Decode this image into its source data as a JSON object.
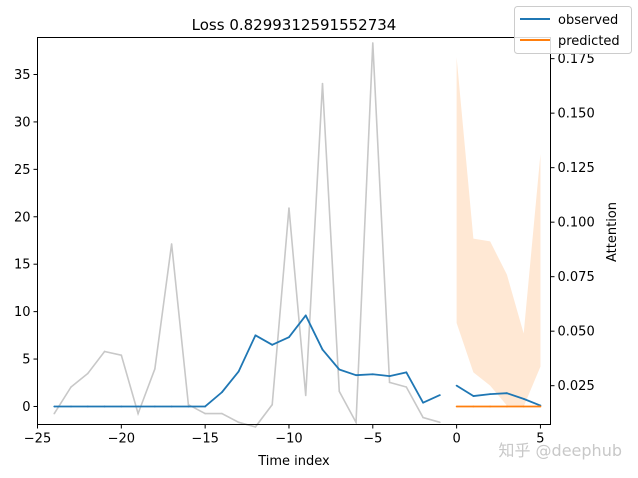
{
  "chart_data": {
    "type": "line",
    "title": "Loss 0.8299312591552734",
    "xlabel": "Time index",
    "ylabel": "",
    "y2label": "Attention",
    "xlim": [
      -25,
      5.6
    ],
    "ylim": [
      -1.9,
      38.9
    ],
    "y2lim": [
      0.0072,
      0.1847
    ],
    "xticks": [
      -25,
      -20,
      -15,
      -10,
      -5,
      0,
      5
    ],
    "xtick_labels": [
      "−25",
      "−20",
      "−15",
      "−10",
      "−5",
      "0",
      "5"
    ],
    "yticks": [
      0,
      5,
      10,
      15,
      20,
      25,
      30,
      35
    ],
    "ytick_labels": [
      "0",
      "5",
      "10",
      "15",
      "20",
      "25",
      "30",
      "35"
    ],
    "y2ticks": [
      0.025,
      0.05,
      0.075,
      0.1,
      0.125,
      0.15,
      0.175
    ],
    "y2tick_labels": [
      "0.025",
      "0.050",
      "0.075",
      "0.100",
      "0.125",
      "0.150",
      "0.175"
    ],
    "legend": {
      "position": "top-right",
      "entries": [
        "observed",
        "predicted"
      ]
    },
    "colors": {
      "observed": "#1f77b4",
      "predicted": "#ff7f0e",
      "attention": "#c8c8c8",
      "band": "#ffe5cf"
    },
    "attention": {
      "x": [
        -24,
        -23,
        -22,
        -21,
        -20,
        -19,
        -18,
        -17,
        -16,
        -15,
        -14,
        -13,
        -12,
        -11,
        -10,
        -9,
        -8,
        -7,
        -6,
        -5,
        -4,
        -3,
        -2,
        -1
      ],
      "y": [
        0.0122,
        0.0244,
        0.0306,
        0.0407,
        0.039,
        0.0122,
        0.0327,
        0.09,
        0.0163,
        0.0122,
        0.0122,
        0.0082,
        0.0061,
        0.0163,
        0.1065,
        0.0205,
        0.1636,
        0.0224,
        0.0082,
        0.1822,
        0.0265,
        0.0244,
        0.0104,
        0.0082
      ]
    },
    "series": [
      {
        "name": "observed",
        "segments": [
          {
            "x": [
              -24,
              -23,
              -22,
              -21,
              -20,
              -19,
              -18,
              -17,
              -16,
              -15,
              -14,
              -13,
              -12,
              -11,
              -10,
              -9,
              -8,
              -7,
              -6,
              -5,
              -4,
              -3,
              -2,
              -1
            ],
            "y": [
              0,
              0,
              0,
              0,
              0,
              0,
              0,
              0,
              0,
              0,
              1.5,
              3.7,
              7.5,
              6.5,
              7.3,
              9.6,
              6.0,
              3.9,
              3.3,
              3.4,
              3.2,
              3.6,
              0.4,
              1.2
            ]
          },
          {
            "x": [
              0,
              1,
              2,
              3,
              4,
              5
            ],
            "y": [
              2.2,
              1.1,
              1.3,
              1.4,
              0.8,
              0.1
            ]
          }
        ]
      },
      {
        "name": "predicted",
        "segments": [
          {
            "x": [
              0,
              1,
              2,
              3,
              4,
              5
            ],
            "y": [
              0,
              0,
              0,
              0,
              0,
              0
            ]
          }
        ]
      }
    ],
    "prediction_band": {
      "x": [
        0,
        1,
        2,
        3,
        4,
        5
      ],
      "upper": [
        36.8,
        17.7,
        17.4,
        13.9,
        7.7,
        26.6
      ],
      "lower": [
        8.8,
        3.6,
        2.2,
        0.1,
        0.0,
        4.2
      ]
    }
  },
  "watermark": "知乎 @deephub"
}
